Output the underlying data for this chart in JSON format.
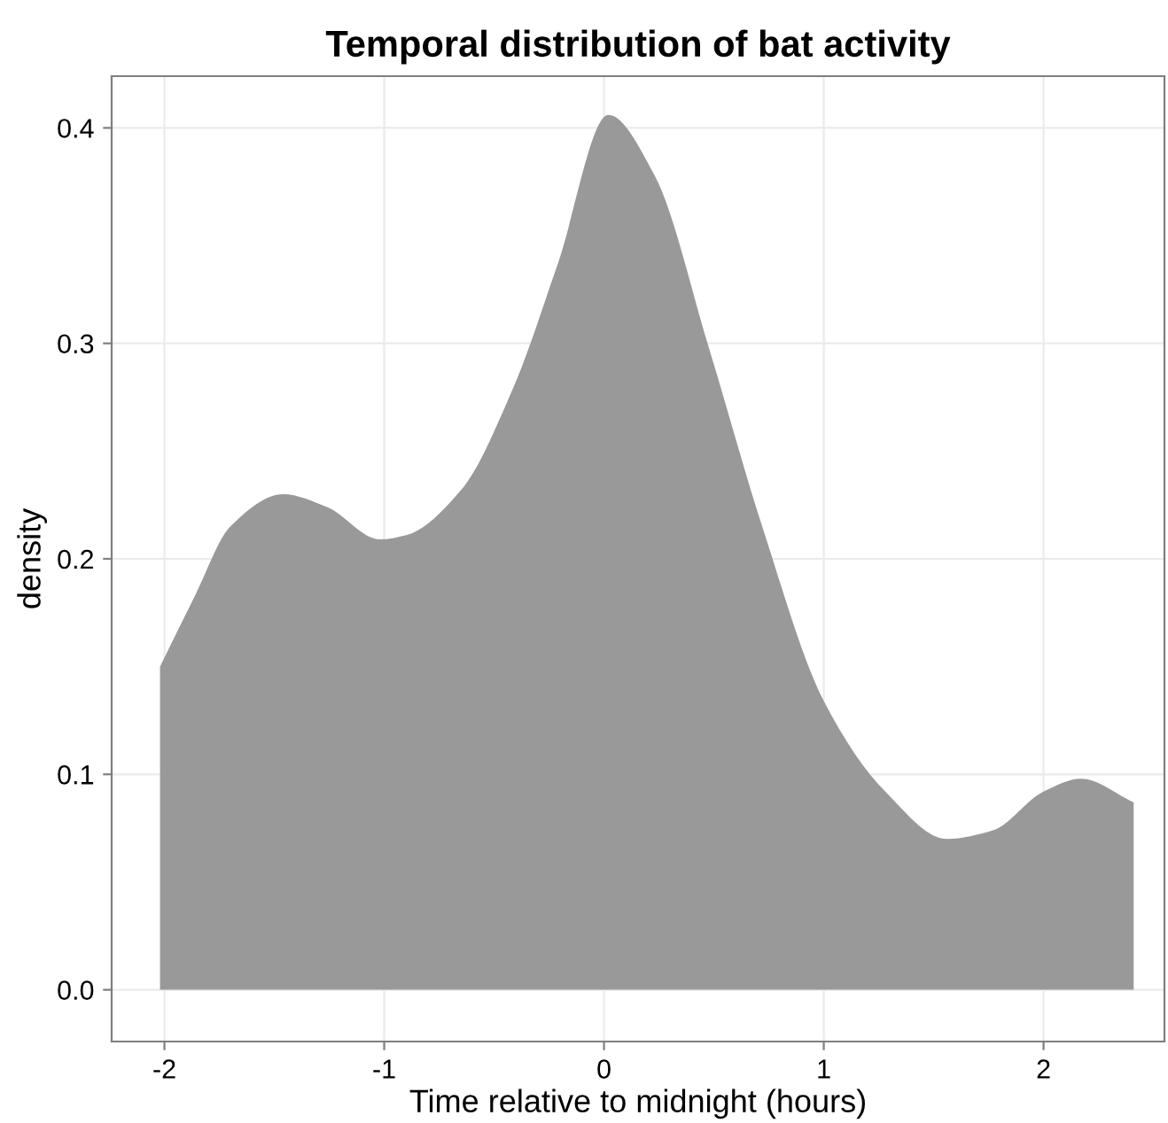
{
  "chart_data": {
    "type": "area",
    "title": "Temporal distribution of bat activity",
    "xlabel": "Time relative to midnight (hours)",
    "ylabel": "density",
    "x": [
      -2.02,
      -1.86,
      -1.7,
      -1.46,
      -1.26,
      -1.02,
      -0.9,
      -0.65,
      -0.41,
      -0.21,
      0.02,
      0.23,
      0.48,
      0.72,
      1.0,
      1.28,
      1.56,
      1.77,
      2.0,
      2.17,
      2.41
    ],
    "series": [
      {
        "color": "#999999",
        "values": [
          0.15,
          0.183,
          0.215,
          0.23,
          0.224,
          0.209,
          0.211,
          0.232,
          0.28,
          0.337,
          0.406,
          0.378,
          0.297,
          0.215,
          0.134,
          0.092,
          0.07,
          0.074,
          0.092,
          0.098,
          0.087
        ]
      }
    ],
    "xlim": [
      -2.24,
      2.55
    ],
    "ylim": [
      -0.024,
      0.424
    ],
    "xticks": [
      -2,
      -1,
      0,
      1,
      2
    ],
    "yticks": [
      {
        "value": 0,
        "label": "0.0"
      },
      0.1,
      0.2,
      0.3,
      0.4
    ],
    "grid": true,
    "legend": false
  }
}
